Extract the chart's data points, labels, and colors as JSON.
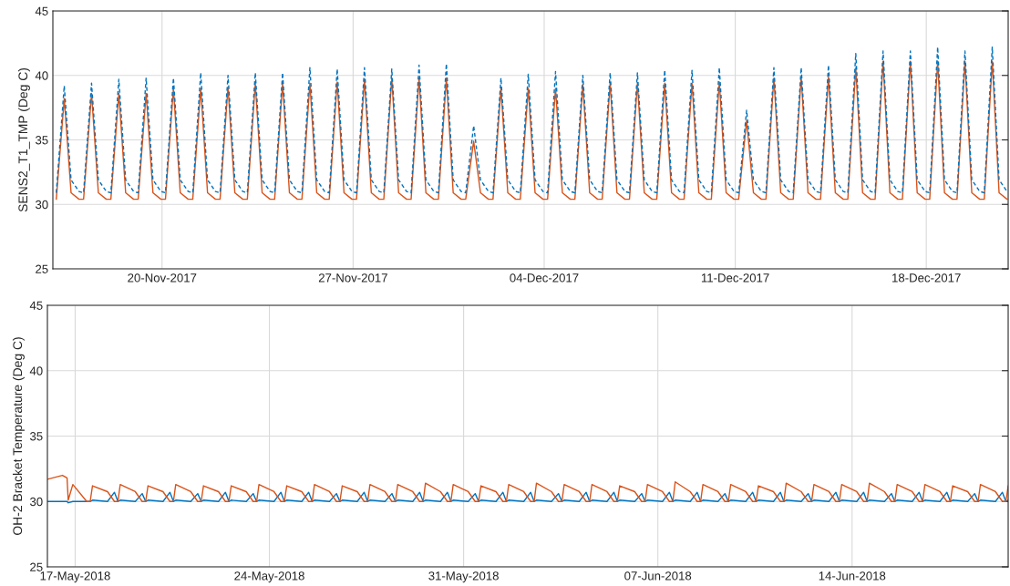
{
  "chart_data": [
    {
      "type": "line",
      "ylabel": "SENS2_T1_TMP (Deg C)",
      "grid": true,
      "marker": "none",
      "xlim": [
        "2017-11-16",
        "2017-12-21"
      ],
      "ylim": [
        25,
        45
      ],
      "yticks": [
        25,
        30,
        35,
        40,
        45
      ],
      "xticks": [
        {
          "value": "2017-11-20",
          "label": "20-Nov-2017"
        },
        {
          "value": "2017-11-27",
          "label": "27-Nov-2017"
        },
        {
          "value": "2017-12-04",
          "label": "04-Dec-2017"
        },
        {
          "value": "2017-12-11",
          "label": "11-Dec-2017"
        },
        {
          "value": "2017-12-18",
          "label": "18-Dec-2017"
        }
      ],
      "x": [
        "2017-11-16T03:00",
        "2017-11-16T10:00",
        "2017-11-16T16:00",
        "2017-11-16T23:00",
        "2017-11-17T03:00",
        "2017-11-17T10:00",
        "2017-11-17T16:00",
        "2017-11-17T23:00",
        "2017-11-18T03:00",
        "2017-11-18T10:00",
        "2017-11-18T16:00",
        "2017-11-18T23:00",
        "2017-11-19T03:00",
        "2017-11-19T10:00",
        "2017-11-19T16:00",
        "2017-11-19T23:00",
        "2017-11-20T03:00",
        "2017-11-20T10:00",
        "2017-11-20T16:00",
        "2017-11-20T23:00",
        "2017-11-21T03:00",
        "2017-11-21T10:00",
        "2017-11-21T16:00",
        "2017-11-21T23:00",
        "2017-11-22T03:00",
        "2017-11-22T10:00",
        "2017-11-22T16:00",
        "2017-11-22T23:00",
        "2017-11-23T03:00",
        "2017-11-23T10:00",
        "2017-11-23T16:00",
        "2017-11-23T23:00",
        "2017-11-24T03:00",
        "2017-11-24T10:00",
        "2017-11-24T16:00",
        "2017-11-24T23:00",
        "2017-11-25T03:00",
        "2017-11-25T10:00",
        "2017-11-25T16:00",
        "2017-11-25T23:00",
        "2017-11-26T03:00",
        "2017-11-26T10:00",
        "2017-11-26T16:00",
        "2017-11-26T23:00",
        "2017-11-27T03:00",
        "2017-11-27T10:00",
        "2017-11-27T16:00",
        "2017-11-27T23:00",
        "2017-11-28T03:00",
        "2017-11-28T10:00",
        "2017-11-28T16:00",
        "2017-11-28T23:00",
        "2017-11-29T03:00",
        "2017-11-29T10:00",
        "2017-11-29T16:00",
        "2017-11-29T23:00",
        "2017-11-30T03:00",
        "2017-11-30T10:00",
        "2017-11-30T16:00",
        "2017-11-30T23:00",
        "2017-12-01T03:00",
        "2017-12-01T10:00",
        "2017-12-01T16:00",
        "2017-12-01T23:00",
        "2017-12-02T03:00",
        "2017-12-02T10:00",
        "2017-12-02T16:00",
        "2017-12-02T23:00",
        "2017-12-03T03:00",
        "2017-12-03T10:00",
        "2017-12-03T16:00",
        "2017-12-03T23:00",
        "2017-12-04T03:00",
        "2017-12-04T10:00",
        "2017-12-04T16:00",
        "2017-12-04T23:00",
        "2017-12-05T03:00",
        "2017-12-05T10:00",
        "2017-12-05T16:00",
        "2017-12-05T23:00",
        "2017-12-06T03:00",
        "2017-12-06T10:00",
        "2017-12-06T16:00",
        "2017-12-06T23:00",
        "2017-12-07T03:00",
        "2017-12-07T10:00",
        "2017-12-07T16:00",
        "2017-12-07T23:00",
        "2017-12-08T03:00",
        "2017-12-08T10:00",
        "2017-12-08T16:00",
        "2017-12-08T23:00",
        "2017-12-09T03:00",
        "2017-12-09T10:00",
        "2017-12-09T16:00",
        "2017-12-09T23:00",
        "2017-12-10T03:00",
        "2017-12-10T10:00",
        "2017-12-10T16:00",
        "2017-12-10T23:00",
        "2017-12-11T03:00",
        "2017-12-11T10:00",
        "2017-12-11T16:00",
        "2017-12-11T23:00",
        "2017-12-12T03:00",
        "2017-12-12T10:00",
        "2017-12-12T16:00",
        "2017-12-12T23:00",
        "2017-12-13T03:00",
        "2017-12-13T10:00",
        "2017-12-13T16:00",
        "2017-12-13T23:00",
        "2017-12-14T03:00",
        "2017-12-14T10:00",
        "2017-12-14T16:00",
        "2017-12-14T23:00",
        "2017-12-15T03:00",
        "2017-12-15T10:00",
        "2017-12-15T16:00",
        "2017-12-15T23:00",
        "2017-12-16T03:00",
        "2017-12-16T10:00",
        "2017-12-16T16:00",
        "2017-12-16T23:00",
        "2017-12-17T03:00",
        "2017-12-17T10:00",
        "2017-12-17T16:00",
        "2017-12-17T23:00",
        "2017-12-18T03:00",
        "2017-12-18T10:00",
        "2017-12-18T16:00",
        "2017-12-18T23:00",
        "2017-12-19T03:00",
        "2017-12-19T10:00",
        "2017-12-19T16:00",
        "2017-12-19T23:00",
        "2017-12-20T03:00",
        "2017-12-20T10:00",
        "2017-12-20T16:00",
        "2017-12-20T23:00"
      ],
      "series": [
        {
          "color": "#0072bd",
          "line_style": "dashed",
          "values": [
            30.9,
            39.2,
            31.9,
            31.0,
            30.9,
            39.4,
            31.9,
            31.0,
            30.9,
            39.7,
            31.9,
            31.0,
            30.9,
            39.8,
            31.9,
            31.0,
            30.9,
            39.8,
            31.9,
            31.0,
            30.9,
            40.2,
            31.9,
            31.0,
            30.9,
            40.0,
            31.9,
            31.0,
            30.9,
            40.2,
            31.9,
            31.0,
            30.9,
            40.2,
            31.9,
            31.0,
            30.9,
            40.6,
            31.9,
            31.0,
            30.9,
            40.5,
            31.9,
            31.0,
            30.9,
            40.6,
            31.9,
            31.0,
            30.9,
            40.5,
            31.9,
            31.0,
            30.9,
            40.8,
            31.9,
            31.0,
            30.9,
            40.9,
            31.9,
            31.0,
            30.9,
            36.1,
            31.9,
            31.0,
            30.9,
            39.8,
            31.9,
            31.0,
            30.9,
            40.1,
            31.9,
            31.0,
            30.9,
            40.3,
            31.9,
            31.0,
            30.9,
            40.0,
            31.9,
            31.0,
            30.9,
            40.2,
            31.9,
            31.0,
            30.9,
            40.2,
            31.9,
            31.0,
            30.9,
            40.4,
            31.9,
            31.0,
            30.9,
            40.4,
            31.9,
            31.0,
            30.9,
            40.6,
            31.9,
            31.0,
            30.9,
            37.3,
            31.9,
            31.0,
            30.9,
            40.6,
            31.9,
            31.0,
            30.9,
            40.6,
            31.9,
            31.0,
            30.9,
            40.8,
            31.9,
            31.0,
            30.9,
            41.7,
            31.9,
            31.0,
            30.9,
            41.9,
            31.9,
            31.0,
            30.9,
            41.9,
            31.9,
            31.0,
            30.9,
            42.2,
            31.9,
            31.0,
            30.9,
            41.9,
            31.9,
            31.0,
            30.9,
            42.2,
            31.9,
            31.0
          ]
        },
        {
          "color": "#d95319",
          "line_style": "solid",
          "values": [
            30.4,
            38.2,
            30.9,
            30.4,
            30.4,
            38.6,
            30.9,
            30.4,
            30.4,
            38.6,
            30.9,
            30.4,
            30.4,
            38.6,
            30.9,
            30.4,
            30.4,
            39.0,
            30.9,
            30.4,
            30.4,
            39.0,
            30.9,
            30.4,
            30.4,
            39.1,
            30.9,
            30.4,
            30.4,
            39.4,
            30.9,
            30.4,
            30.4,
            39.4,
            30.9,
            30.4,
            30.4,
            39.4,
            30.9,
            30.4,
            30.4,
            39.5,
            30.9,
            30.4,
            30.4,
            39.7,
            30.9,
            30.4,
            30.4,
            39.8,
            30.9,
            30.4,
            30.4,
            39.8,
            30.9,
            30.4,
            30.4,
            39.8,
            30.9,
            30.4,
            30.4,
            34.9,
            30.9,
            30.4,
            30.4,
            39.0,
            30.9,
            30.4,
            30.4,
            39.0,
            30.9,
            30.4,
            30.4,
            39.0,
            30.9,
            30.4,
            30.4,
            39.3,
            30.9,
            30.4,
            30.4,
            39.4,
            30.9,
            30.4,
            30.4,
            39.4,
            30.9,
            30.4,
            30.4,
            39.4,
            30.9,
            30.4,
            30.4,
            39.4,
            30.9,
            30.4,
            30.4,
            39.5,
            30.9,
            30.4,
            30.4,
            36.5,
            30.9,
            30.4,
            30.4,
            39.8,
            30.9,
            30.4,
            30.4,
            39.9,
            30.9,
            30.4,
            30.4,
            39.9,
            30.9,
            30.4,
            30.4,
            40.6,
            30.9,
            30.4,
            30.4,
            41.1,
            30.9,
            30.4,
            30.4,
            41.1,
            30.9,
            30.4,
            30.4,
            41.1,
            30.9,
            30.4,
            30.4,
            41.1,
            30.9,
            30.4,
            30.4,
            41.1,
            30.9,
            30.4
          ]
        }
      ]
    },
    {
      "type": "line",
      "ylabel": "OH-2 Bracket Temperature (Deg C)",
      "grid": true,
      "marker": "none",
      "xlim": [
        "2018-05-16",
        "2018-06-19T15:00"
      ],
      "ylim": [
        25,
        45
      ],
      "yticks": [
        25,
        30,
        35,
        40,
        45
      ],
      "xticks": [
        {
          "value": "2018-05-17",
          "label": "17-May-2018"
        },
        {
          "value": "2018-05-24",
          "label": "24-May-2018"
        },
        {
          "value": "2018-05-31",
          "label": "31-May-2018"
        },
        {
          "value": "2018-06-07",
          "label": "07-Jun-2018"
        },
        {
          "value": "2018-06-14",
          "label": "14-Jun-2018"
        }
      ],
      "x": [
        "2018-05-16T00:00",
        "2018-05-16T13:00",
        "2018-05-16T17:00",
        "2018-05-16T18:00",
        "2018-05-16T22:00",
        "2018-05-17T10:00",
        "2018-05-17T13:00",
        "2018-05-17T15:00",
        "2018-05-18T04:00",
        "2018-05-18T10:00",
        "2018-05-18T13:00",
        "2018-05-18T15:00",
        "2018-05-19T04:00",
        "2018-05-19T10:00",
        "2018-05-19T13:00",
        "2018-05-19T15:00",
        "2018-05-20T04:00",
        "2018-05-20T10:00",
        "2018-05-20T13:00",
        "2018-05-20T15:00",
        "2018-05-21T04:00",
        "2018-05-21T10:00",
        "2018-05-21T13:00",
        "2018-05-21T15:00",
        "2018-05-22T04:00",
        "2018-05-22T10:00",
        "2018-05-22T13:00",
        "2018-05-22T15:00",
        "2018-05-23T04:00",
        "2018-05-23T10:00",
        "2018-05-23T13:00",
        "2018-05-23T15:00",
        "2018-05-24T04:00",
        "2018-05-24T10:00",
        "2018-05-24T13:00",
        "2018-05-24T15:00",
        "2018-05-25T04:00",
        "2018-05-25T10:00",
        "2018-05-25T13:00",
        "2018-05-25T15:00",
        "2018-05-26T04:00",
        "2018-05-26T10:00",
        "2018-05-26T13:00",
        "2018-05-26T15:00",
        "2018-05-27T04:00",
        "2018-05-27T10:00",
        "2018-05-27T13:00",
        "2018-05-27T15:00",
        "2018-05-28T04:00",
        "2018-05-28T10:00",
        "2018-05-28T13:00",
        "2018-05-28T15:00",
        "2018-05-29T04:00",
        "2018-05-29T10:00",
        "2018-05-29T13:00",
        "2018-05-29T15:00",
        "2018-05-30T04:00",
        "2018-05-30T10:00",
        "2018-05-30T13:00",
        "2018-05-30T15:00",
        "2018-05-31T04:00",
        "2018-05-31T10:00",
        "2018-05-31T13:00",
        "2018-05-31T15:00",
        "2018-06-01T04:00",
        "2018-06-01T10:00",
        "2018-06-01T13:00",
        "2018-06-01T15:00",
        "2018-06-02T04:00",
        "2018-06-02T10:00",
        "2018-06-02T13:00",
        "2018-06-02T15:00",
        "2018-06-03T04:00",
        "2018-06-03T10:00",
        "2018-06-03T13:00",
        "2018-06-03T15:00",
        "2018-06-04T04:00",
        "2018-06-04T10:00",
        "2018-06-04T13:00",
        "2018-06-04T15:00",
        "2018-06-05T04:00",
        "2018-06-05T10:00",
        "2018-06-05T13:00",
        "2018-06-05T15:00",
        "2018-06-06T04:00",
        "2018-06-06T10:00",
        "2018-06-06T13:00",
        "2018-06-06T15:00",
        "2018-06-07T04:00",
        "2018-06-07T10:00",
        "2018-06-07T13:00",
        "2018-06-07T15:00",
        "2018-06-08T04:00",
        "2018-06-08T10:00",
        "2018-06-08T13:00",
        "2018-06-08T15:00",
        "2018-06-09T04:00",
        "2018-06-09T10:00",
        "2018-06-09T13:00",
        "2018-06-09T15:00",
        "2018-06-10T04:00",
        "2018-06-10T10:00",
        "2018-06-10T13:00",
        "2018-06-10T15:00",
        "2018-06-11T04:00",
        "2018-06-11T10:00",
        "2018-06-11T13:00",
        "2018-06-11T15:00",
        "2018-06-12T04:00",
        "2018-06-12T10:00",
        "2018-06-12T13:00",
        "2018-06-12T15:00",
        "2018-06-13T04:00",
        "2018-06-13T10:00",
        "2018-06-13T13:00",
        "2018-06-13T15:00",
        "2018-06-14T04:00",
        "2018-06-14T10:00",
        "2018-06-14T13:00",
        "2018-06-14T15:00",
        "2018-06-15T04:00",
        "2018-06-15T10:00",
        "2018-06-15T13:00",
        "2018-06-15T15:00",
        "2018-06-16T04:00",
        "2018-06-16T10:00",
        "2018-06-16T13:00",
        "2018-06-16T15:00",
        "2018-06-17T04:00",
        "2018-06-17T10:00",
        "2018-06-17T13:00",
        "2018-06-17T15:00",
        "2018-06-18T04:00",
        "2018-06-18T10:00",
        "2018-06-18T13:00",
        "2018-06-18T15:00",
        "2018-06-19T04:00",
        "2018-06-19T10:00",
        "2018-06-19T13:00",
        "2018-06-19T15:00"
      ],
      "series": [
        {
          "color": "#0072bd",
          "line_style": "solid",
          "values": [
            30.0,
            30.0,
            30.0,
            29.9,
            30.0,
            30.0,
            30.0,
            30.1,
            30.0,
            30.7,
            30.0,
            30.1,
            30.0,
            30.6,
            30.0,
            30.1,
            30.0,
            30.7,
            30.0,
            30.1,
            30.0,
            30.6,
            30.0,
            30.1,
            30.0,
            30.7,
            30.0,
            30.1,
            30.0,
            30.6,
            30.0,
            30.1,
            30.0,
            30.7,
            30.0,
            30.1,
            30.0,
            30.7,
            30.0,
            30.1,
            30.0,
            30.6,
            30.0,
            30.1,
            30.0,
            30.7,
            30.0,
            30.1,
            30.0,
            30.6,
            30.0,
            30.1,
            30.0,
            30.7,
            30.0,
            30.1,
            30.0,
            30.7,
            30.0,
            30.1,
            30.0,
            30.6,
            30.0,
            30.1,
            30.0,
            30.7,
            30.0,
            30.1,
            30.0,
            30.7,
            30.0,
            30.1,
            30.0,
            30.6,
            30.0,
            30.1,
            30.0,
            30.7,
            30.0,
            30.1,
            30.0,
            30.7,
            30.0,
            30.1,
            30.0,
            30.6,
            30.0,
            30.1,
            30.0,
            30.7,
            30.0,
            30.1,
            30.0,
            30.7,
            30.0,
            30.1,
            30.0,
            30.6,
            30.0,
            30.1,
            30.0,
            30.7,
            30.0,
            30.1,
            30.0,
            30.7,
            30.0,
            30.1,
            30.0,
            30.6,
            30.0,
            30.1,
            30.0,
            30.7,
            30.0,
            30.1,
            30.0,
            30.7,
            30.0,
            30.1,
            30.0,
            30.6,
            30.0,
            30.1,
            30.0,
            30.7,
            30.0,
            30.1,
            30.0,
            30.7,
            30.0,
            30.1,
            30.0,
            30.6,
            30.0,
            30.1,
            30.0,
            30.7,
            30.0,
            30.1
          ]
        },
        {
          "color": "#d95319",
          "line_style": "solid",
          "values": [
            31.7,
            32.0,
            31.8,
            30.1,
            31.3,
            30.0,
            30.0,
            31.2,
            30.75,
            30.0,
            30.0,
            31.3,
            30.75,
            30.0,
            30.0,
            31.2,
            30.75,
            30.0,
            30.0,
            31.3,
            30.75,
            30.0,
            30.0,
            31.2,
            30.75,
            30.0,
            30.0,
            31.2,
            30.75,
            30.0,
            30.0,
            31.3,
            30.75,
            30.0,
            30.0,
            31.2,
            30.75,
            30.0,
            30.0,
            31.3,
            30.75,
            30.0,
            30.0,
            31.2,
            30.75,
            30.0,
            30.0,
            31.3,
            30.75,
            30.0,
            30.0,
            31.3,
            30.75,
            30.0,
            30.0,
            31.4,
            30.75,
            30.0,
            30.0,
            31.3,
            30.75,
            30.0,
            30.0,
            31.2,
            30.75,
            30.0,
            30.0,
            31.3,
            30.75,
            30.0,
            30.0,
            31.4,
            30.75,
            30.0,
            30.0,
            31.3,
            30.75,
            30.0,
            30.0,
            31.3,
            30.75,
            30.0,
            30.0,
            31.2,
            30.75,
            30.0,
            30.0,
            31.3,
            30.75,
            30.0,
            30.0,
            31.5,
            30.75,
            30.0,
            30.0,
            31.3,
            30.75,
            30.0,
            30.0,
            31.3,
            30.75,
            30.0,
            30.0,
            31.2,
            30.75,
            30.0,
            30.0,
            31.4,
            30.75,
            30.0,
            30.0,
            31.3,
            30.75,
            30.0,
            30.0,
            31.3,
            30.75,
            30.0,
            30.0,
            31.4,
            30.75,
            30.0,
            30.0,
            31.3,
            30.75,
            30.0,
            30.0,
            31.3,
            30.75,
            30.0,
            30.0,
            31.2,
            30.75,
            30.0,
            30.0,
            31.3,
            30.75,
            30.0,
            30.0,
            31.2
          ]
        }
      ]
    }
  ]
}
